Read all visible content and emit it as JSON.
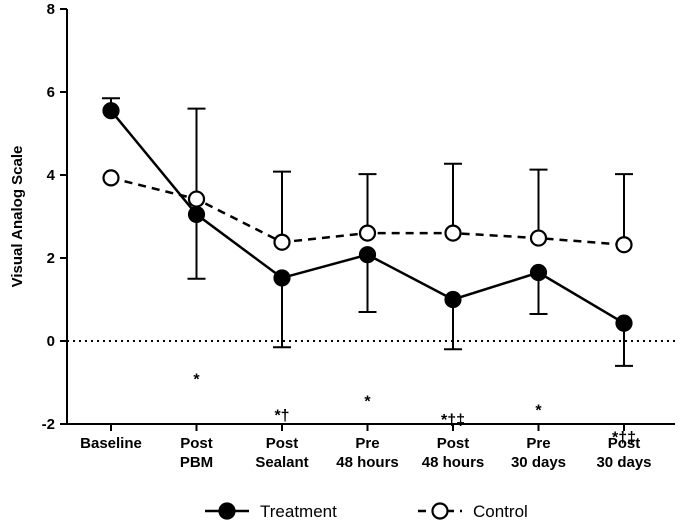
{
  "chart_data": {
    "type": "line",
    "title": "",
    "xlabel": "",
    "ylabel": "Visual Analog Scale",
    "ylim": [
      -2,
      8
    ],
    "yticks": [
      -2,
      0,
      2,
      4,
      6,
      8
    ],
    "reference_line": 0,
    "categories": [
      [
        "Baseline"
      ],
      [
        "Post",
        "PBM"
      ],
      [
        "Post",
        "Sealant"
      ],
      [
        "Pre",
        "48 hours"
      ],
      [
        "Post",
        "48 hours"
      ],
      [
        "Pre",
        "30 days"
      ],
      [
        "Post",
        "30 days"
      ]
    ],
    "series": [
      {
        "name": "Treatment",
        "marker": "filled-circle",
        "line": "solid",
        "values": [
          5.55,
          3.05,
          1.52,
          2.08,
          1.0,
          1.65,
          0.43
        ],
        "error_upper": [
          5.85,
          null,
          null,
          null,
          null,
          null,
          null
        ],
        "error_lower": [
          null,
          null,
          -0.15,
          0.7,
          -0.2,
          0.65,
          -0.6
        ]
      },
      {
        "name": "Control",
        "marker": "open-circle",
        "line": "dashed",
        "values": [
          3.93,
          3.42,
          2.38,
          2.6,
          2.6,
          2.48,
          2.32
        ],
        "error_upper": [
          null,
          5.6,
          4.08,
          4.02,
          4.27,
          4.13,
          4.02
        ],
        "error_lower": [
          null,
          1.5,
          null,
          null,
          null,
          null,
          null
        ]
      }
    ],
    "annotations": [
      {
        "category": 1,
        "text": "*",
        "y": -1.05
      },
      {
        "category": 2,
        "text": "*†",
        "y": -1.92
      },
      {
        "category": 3,
        "text": "*",
        "y": -1.58
      },
      {
        "category": 4,
        "text": "*†‡",
        "y": -2.03
      },
      {
        "category": 5,
        "text": "*",
        "y": -1.8
      },
      {
        "category": 6,
        "text": "*†‡",
        "y": -2.45
      }
    ],
    "legend": {
      "position": "bottom",
      "entries": [
        {
          "label": "Treatment",
          "marker": "filled-circle"
        },
        {
          "label": "Control",
          "marker": "open-circle"
        }
      ]
    },
    "grid": false
  }
}
